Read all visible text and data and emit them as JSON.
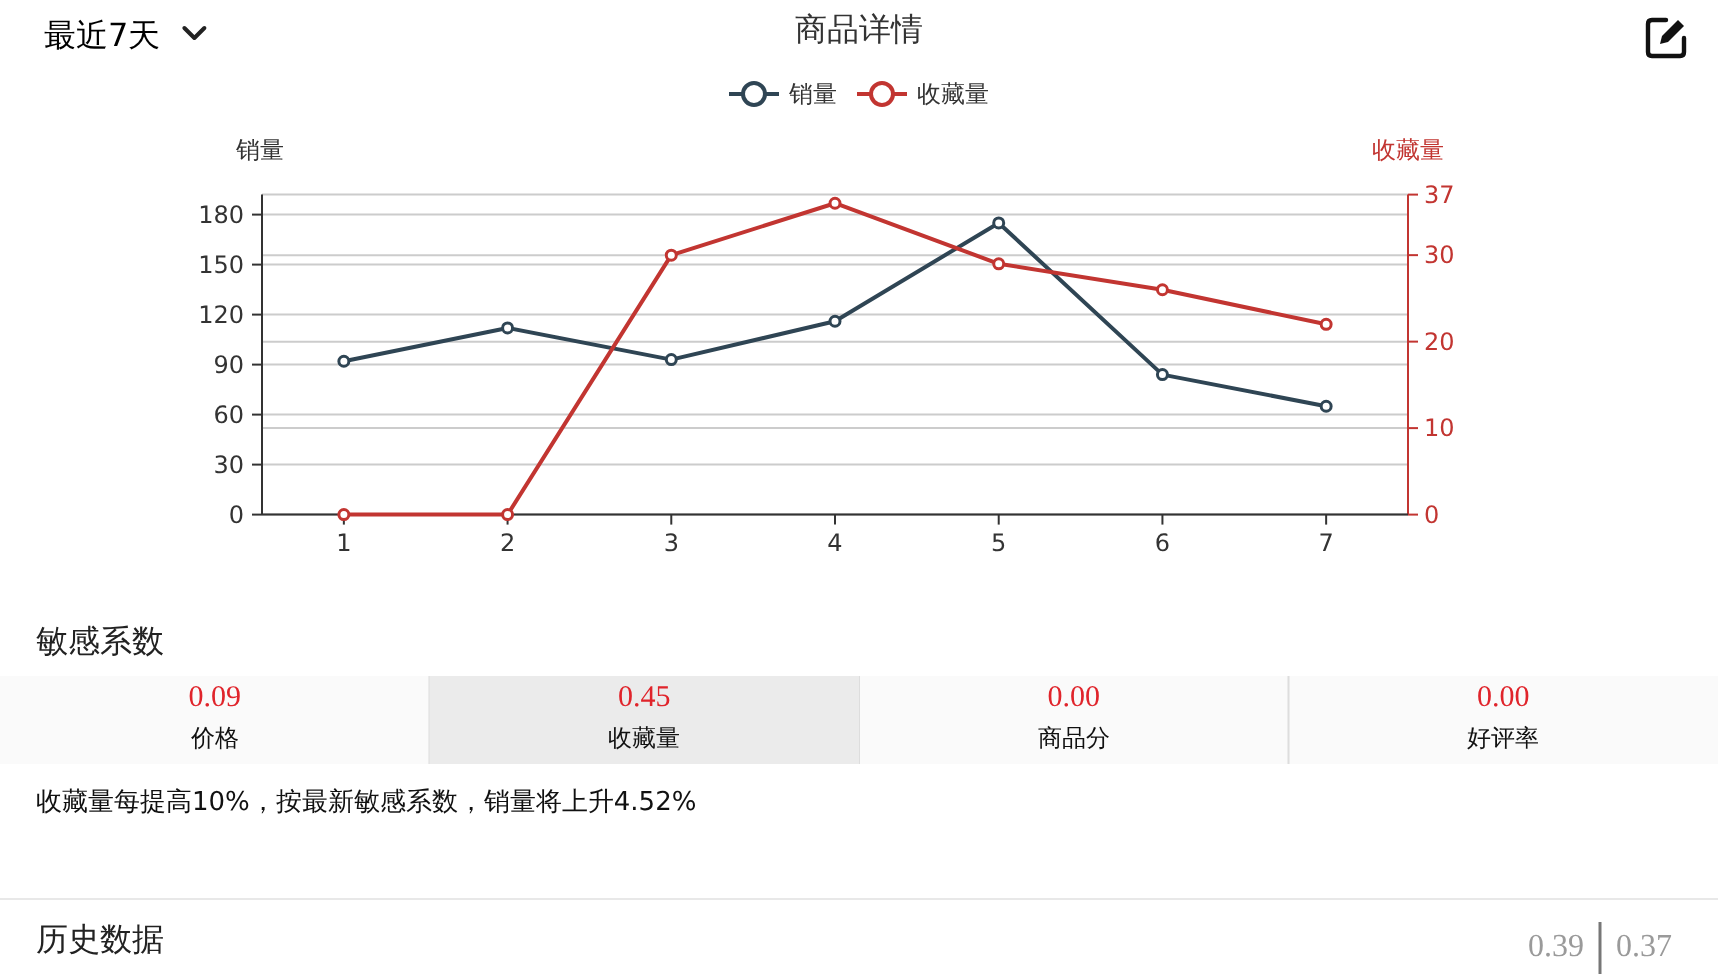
{
  "chart_data": [
    {
      "type": "line",
      "title": "商品详情",
      "annotations": [
        "最近7天"
      ],
      "categories": [
        "1",
        "2",
        "3",
        "4",
        "5",
        "6",
        "7"
      ],
      "ylabel": "销量",
      "y2label": "收藏量",
      "series": [
        {
          "name": "销量",
          "color": "#2f4554",
          "values": [
            92,
            112,
            93,
            116,
            175,
            84,
            65
          ]
        },
        {
          "name": "收藏量",
          "color": "#c23531",
          "axis": "y2",
          "values": [
            0,
            0,
            30,
            36,
            29,
            26,
            22
          ]
        }
      ],
      "ylim": [
        0,
        192
      ],
      "yticks": [
        0,
        30,
        60,
        90,
        120,
        150,
        180
      ],
      "y2lim": [
        0,
        37
      ],
      "y2ticks": [
        0,
        10,
        20,
        30,
        37
      ],
      "grid": true,
      "legend": "top",
      "marker": "circle"
    },
    {
      "type": "other",
      "title": "敏感系数",
      "categories": [
        "价格",
        "收藏量",
        "商品分",
        "好评率"
      ],
      "value_labels": [
        "0.09",
        "0.45",
        "0.00",
        "0.00"
      ],
      "colors": [
        "#fafafa",
        "#ebebeb",
        "#fafafa",
        "#fafafa"
      ],
      "annotations": [
        "收藏量每提高10%，按最新敏感系数，销量将上升4.52%"
      ]
    },
    {
      "type": "other",
      "title": "历史数据",
      "annotations": [
        "0.39",
        "0.37"
      ]
    }
  ]
}
